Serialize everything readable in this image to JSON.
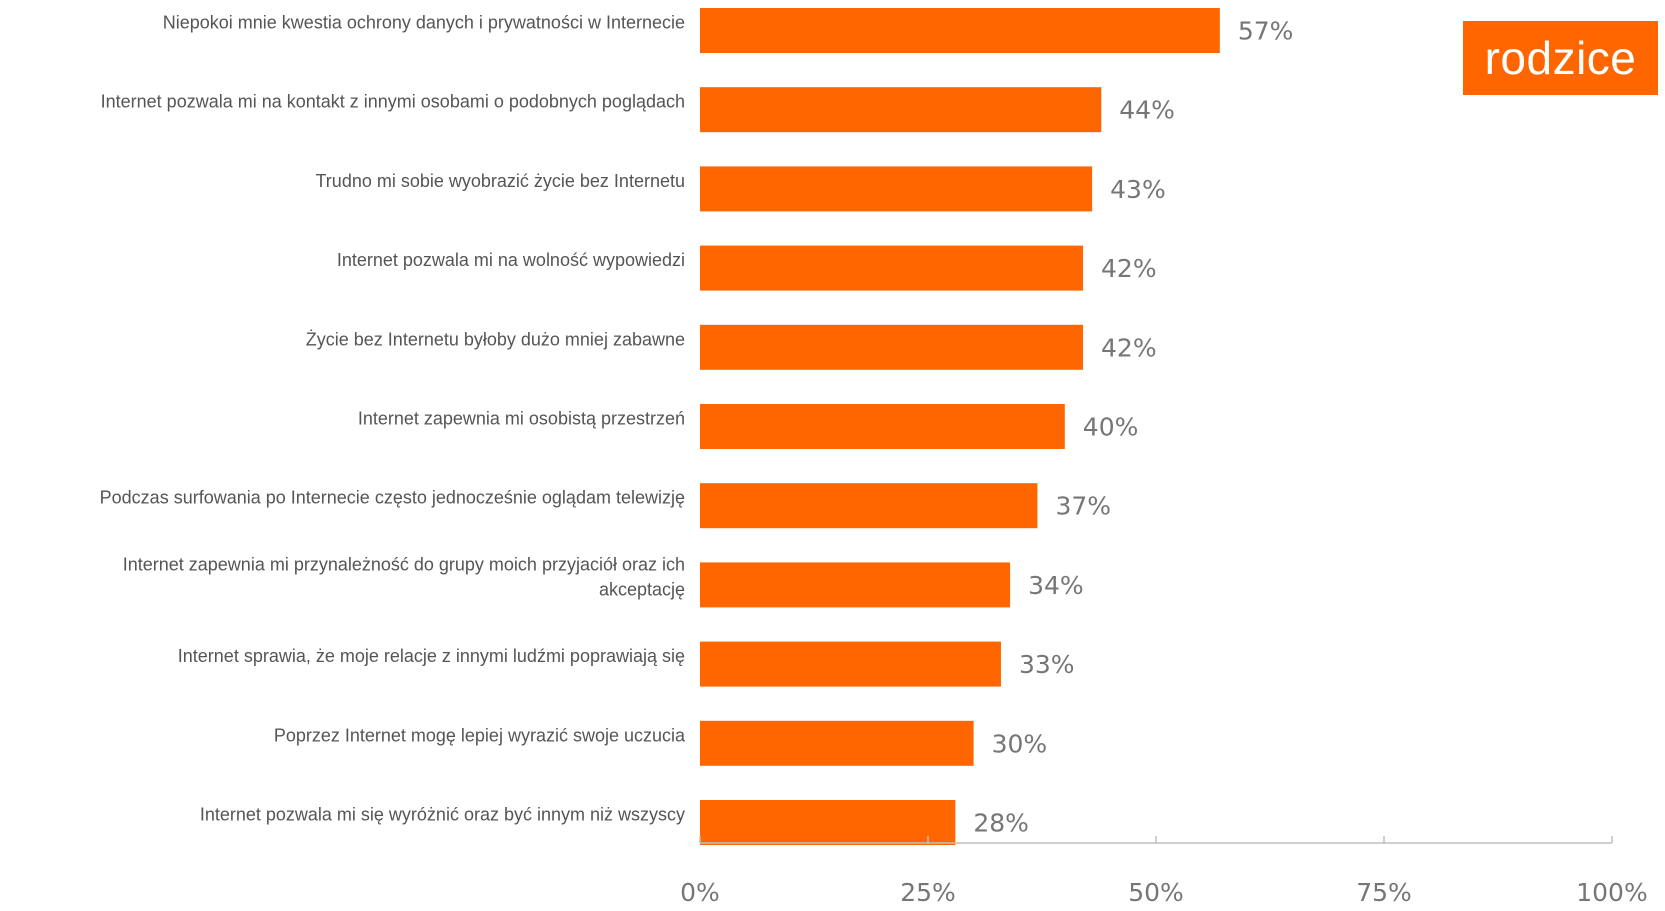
{
  "badge": {
    "label": "rodzice",
    "color": "#FF6600"
  },
  "colors": {
    "bar": "#FF6600",
    "axis": "#BFBFBF",
    "text": "#555555",
    "value_text": "#767676"
  },
  "chart_data": {
    "type": "bar",
    "orientation": "horizontal",
    "categories": [
      "Niepokoi mnie kwestia ochrony danych i prywatności w Internecie",
      "Internet pozwala mi na kontakt z innymi osobami o podobnych poglądach",
      "Trudno mi sobie wyobrazić życie bez Internetu",
      "Internet pozwala mi na wolność wypowiedzi",
      "Życie bez Internetu byłoby dużo mniej zabawne",
      "Internet zapewnia mi osobistą przestrzeń",
      "Podczas surfowania po Internecie często jednocześnie oglądam telewizję",
      "Internet zapewnia mi przynależność do grupy moich przyjaciół oraz ich akceptację",
      "Internet sprawia, że moje relacje z innymi ludźmi poprawiają się",
      "Poprzez Internet mogę lepiej wyrazić swoje uczucia",
      "Internet pozwala mi się wyróżnić oraz być innym niż wszyscy"
    ],
    "values": [
      57,
      44,
      43,
      42,
      42,
      40,
      37,
      34,
      33,
      30,
      28
    ],
    "value_labels": [
      "57%",
      "44%",
      "43%",
      "42%",
      "42%",
      "40%",
      "37%",
      "34%",
      "33%",
      "30%",
      "28%"
    ],
    "xlim": [
      0,
      100
    ],
    "x_ticks": [
      0,
      25,
      50,
      75,
      100
    ],
    "x_tick_labels": [
      "0%",
      "25%",
      "50%",
      "75%",
      "100%"
    ],
    "grid": false,
    "legend": "none"
  }
}
